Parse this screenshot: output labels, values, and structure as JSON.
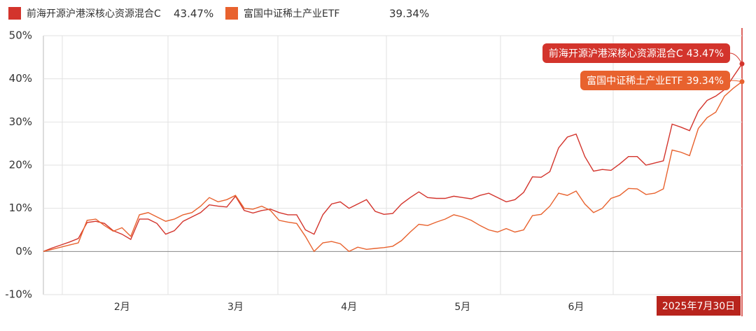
{
  "chart_data": {
    "type": "line",
    "categories": [
      null,
      null,
      null,
      null,
      null,
      null,
      null,
      null,
      null,
      "2月",
      null,
      null,
      null,
      null,
      null,
      null,
      null,
      null,
      null,
      null,
      null,
      null,
      "3月",
      null,
      null,
      null,
      null,
      null,
      null,
      null,
      null,
      null,
      null,
      null,
      null,
      "4月",
      null,
      null,
      null,
      null,
      null,
      null,
      null,
      null,
      null,
      null,
      null,
      null,
      "5月",
      null,
      null,
      null,
      null,
      null,
      null,
      null,
      null,
      null,
      null,
      null,
      null,
      "6月",
      null,
      null,
      null,
      null,
      null,
      null,
      null,
      null,
      null,
      null,
      null,
      null,
      null,
      null,
      null,
      null,
      null,
      null,
      "2025年7月30日"
    ],
    "series": [
      {
        "name": "前海开源沪港深核心资源混合C",
        "color": "#d3342c",
        "values": [
          0,
          0.8,
          1.5,
          2.2,
          3,
          6.7,
          7,
          6.5,
          4.8,
          4,
          2.8,
          7.5,
          7.5,
          6.5,
          4,
          4.8,
          7,
          8,
          9,
          10.8,
          10.5,
          10.3,
          12.8,
          9.5,
          8.9,
          9.5,
          9.8,
          9,
          8.5,
          8.5,
          5,
          4,
          8.5,
          11,
          11.5,
          10,
          11,
          12,
          9.3,
          8.6,
          8.8,
          11,
          12.5,
          13.8,
          12.5,
          12.3,
          12.3,
          12.8,
          12.5,
          12.2,
          13,
          13.5,
          12.5,
          11.5,
          12,
          13.7,
          17.3,
          17.2,
          18.5,
          24,
          26.5,
          27.2,
          22,
          18.6,
          19,
          18.8,
          20.3,
          22,
          22,
          20,
          20.5,
          21,
          29.5,
          28.8,
          28,
          32.5,
          35,
          36,
          37.5,
          40.5,
          43.47
        ],
        "value_labels": [
          null,
          null,
          null,
          null,
          null,
          null,
          null,
          null,
          null,
          null,
          null,
          null,
          null,
          null,
          null,
          null,
          null,
          null,
          null,
          null,
          null,
          null,
          null,
          null,
          null,
          null,
          null,
          null,
          null,
          null,
          null,
          null,
          null,
          null,
          null,
          null,
          null,
          null,
          null,
          null,
          null,
          null,
          null,
          null,
          null,
          null,
          null,
          null,
          null,
          null,
          null,
          null,
          null,
          null,
          null,
          null,
          null,
          null,
          null,
          null,
          null,
          null,
          null,
          null,
          null,
          null,
          null,
          null,
          null,
          null,
          null,
          null,
          null,
          null,
          null,
          null,
          null,
          null,
          null,
          null,
          "43.47%"
        ]
      },
      {
        "name": "富国中证稀土产业ETF",
        "color": "#e8622e",
        "values": [
          0,
          0.5,
          1,
          1.5,
          2,
          7.2,
          7.5,
          6,
          4.7,
          5.5,
          3.5,
          8.5,
          9,
          8,
          7,
          7.5,
          8.5,
          9,
          10.5,
          12.5,
          11.5,
          12,
          13,
          10,
          9.8,
          10.5,
          9.5,
          7.2,
          6.8,
          6.5,
          3.5,
          0,
          2,
          2.3,
          1.8,
          0,
          1,
          0.5,
          0.7,
          0.9,
          1.2,
          2.5,
          4.5,
          6.3,
          6,
          6.8,
          7.5,
          8.5,
          8,
          7.2,
          6,
          5,
          4.5,
          5.3,
          4.5,
          5,
          8.3,
          8.6,
          10.5,
          13.5,
          13,
          14,
          11,
          9,
          10,
          12.3,
          13,
          14.6,
          14.5,
          13.2,
          13.5,
          14.5,
          23.5,
          23,
          22.2,
          28.5,
          31,
          32.3,
          36,
          37.8,
          39.34
        ],
        "value_labels": [
          null,
          null,
          null,
          null,
          null,
          null,
          null,
          null,
          null,
          null,
          null,
          null,
          null,
          null,
          null,
          null,
          null,
          null,
          null,
          null,
          null,
          null,
          null,
          null,
          null,
          null,
          null,
          null,
          null,
          null,
          null,
          null,
          null,
          null,
          null,
          null,
          null,
          null,
          null,
          null,
          null,
          null,
          null,
          null,
          null,
          null,
          null,
          null,
          null,
          null,
          null,
          null,
          null,
          null,
          null,
          null,
          null,
          null,
          null,
          null,
          null,
          null,
          null,
          null,
          null,
          null,
          null,
          null,
          null,
          null,
          null,
          null,
          null,
          null,
          null,
          null,
          null,
          null,
          null,
          null,
          "39.34%"
        ]
      }
    ],
    "ylim": [
      -10,
      50
    ],
    "yticks": [
      {
        "value": -10,
        "label": "-10%"
      },
      {
        "value": 0,
        "label": "0%"
      },
      {
        "value": 10,
        "label": "10%"
      },
      {
        "value": 20,
        "label": "20%"
      },
      {
        "value": 30,
        "label": "30%"
      },
      {
        "value": 40,
        "label": "40%"
      },
      {
        "value": 50,
        "label": "50%"
      }
    ],
    "grid": true
  }
}
